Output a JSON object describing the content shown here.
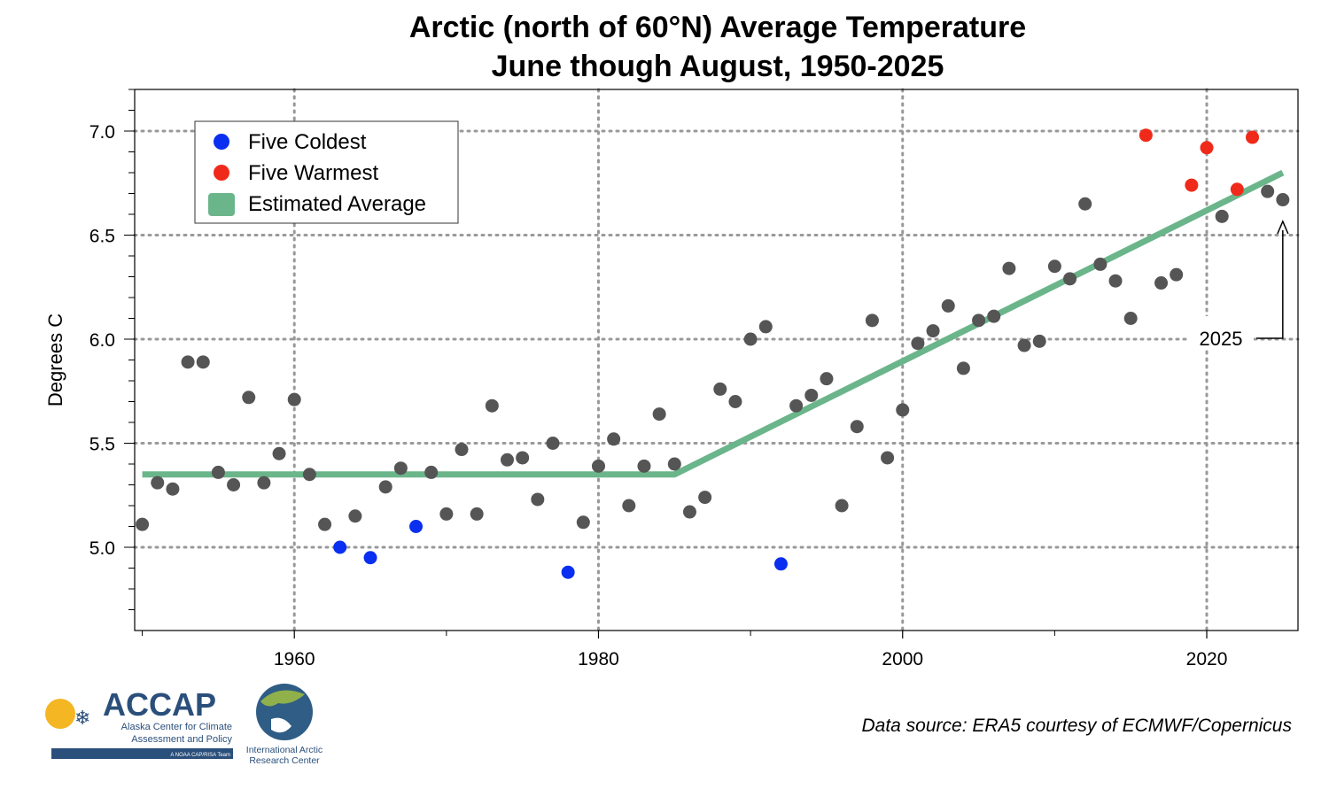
{
  "chart_data": {
    "type": "scatter",
    "title": "Arctic (north of 60°N) Average Temperature",
    "subtitle": "June though August, 1950-2025",
    "xlabel": "",
    "ylabel": "Degrees C",
    "xlim": [
      1949.5,
      2026
    ],
    "ylim": [
      4.6,
      7.2
    ],
    "xticks": [
      1960,
      1980,
      2000,
      2020
    ],
    "xminor": [
      1950,
      1970,
      1990,
      2010
    ],
    "yticks": [
      "5.0",
      "5.5",
      "6.0",
      "6.5",
      "7.0"
    ],
    "grid": true,
    "legend_position": "top-left",
    "legend": [
      "Five Coldest",
      "Five Warmest",
      "Estimated Average"
    ],
    "colors": {
      "normal": "#555555",
      "coldest": "#0a2ff0",
      "warmest": "#f02a1a",
      "trend": "#6bb58a"
    },
    "x": [
      1950,
      1951,
      1952,
      1953,
      1954,
      1955,
      1956,
      1957,
      1958,
      1959,
      1960,
      1961,
      1962,
      1963,
      1964,
      1965,
      1966,
      1967,
      1968,
      1969,
      1970,
      1971,
      1972,
      1973,
      1974,
      1975,
      1976,
      1977,
      1978,
      1979,
      1980,
      1981,
      1982,
      1983,
      1984,
      1985,
      1986,
      1987,
      1988,
      1989,
      1990,
      1991,
      1992,
      1993,
      1994,
      1995,
      1996,
      1997,
      1998,
      1999,
      2000,
      2001,
      2002,
      2003,
      2004,
      2005,
      2006,
      2007,
      2008,
      2009,
      2010,
      2011,
      2012,
      2013,
      2014,
      2015,
      2016,
      2017,
      2018,
      2019,
      2020,
      2021,
      2022,
      2023,
      2024,
      2025
    ],
    "values": [
      5.11,
      5.31,
      5.28,
      5.89,
      5.89,
      5.36,
      5.3,
      5.72,
      5.31,
      5.45,
      5.71,
      5.35,
      5.11,
      5.0,
      5.15,
      4.95,
      5.29,
      5.38,
      5.1,
      5.36,
      5.16,
      5.47,
      5.16,
      5.68,
      5.42,
      5.43,
      5.23,
      5.5,
      4.88,
      5.12,
      5.39,
      5.52,
      5.2,
      5.39,
      5.64,
      5.4,
      5.17,
      5.24,
      5.76,
      5.7,
      6.0,
      6.06,
      4.92,
      5.68,
      5.73,
      5.81,
      5.2,
      5.58,
      6.09,
      5.43,
      5.66,
      5.98,
      6.04,
      6.16,
      5.86,
      6.09,
      6.11,
      6.34,
      5.97,
      5.99,
      6.35,
      6.29,
      6.65,
      6.36,
      6.28,
      6.1,
      6.98,
      6.27,
      6.31,
      6.74,
      6.92,
      6.59,
      6.72,
      6.97,
      6.71,
      6.67
    ],
    "coldest_years": [
      1963,
      1965,
      1968,
      1978,
      1992
    ],
    "warmest_years": [
      2016,
      2019,
      2020,
      2022,
      2023
    ],
    "trend": {
      "x": [
        1950,
        1985,
        2025
      ],
      "y": [
        5.35,
        5.35,
        6.8
      ]
    },
    "annotation": "2025"
  },
  "footer": {
    "source": "Data source: ERA5 courtesy of ECMWF/Copernicus",
    "logo1_name": "ACCAP",
    "logo1_sub1": "Alaska Center for Climate",
    "logo1_sub2": "Assessment and Policy",
    "logo1_sub3": "A NOAA CAP/RISA Team",
    "logo2_sub1": "International Arctic",
    "logo2_sub2": "Research Center"
  }
}
